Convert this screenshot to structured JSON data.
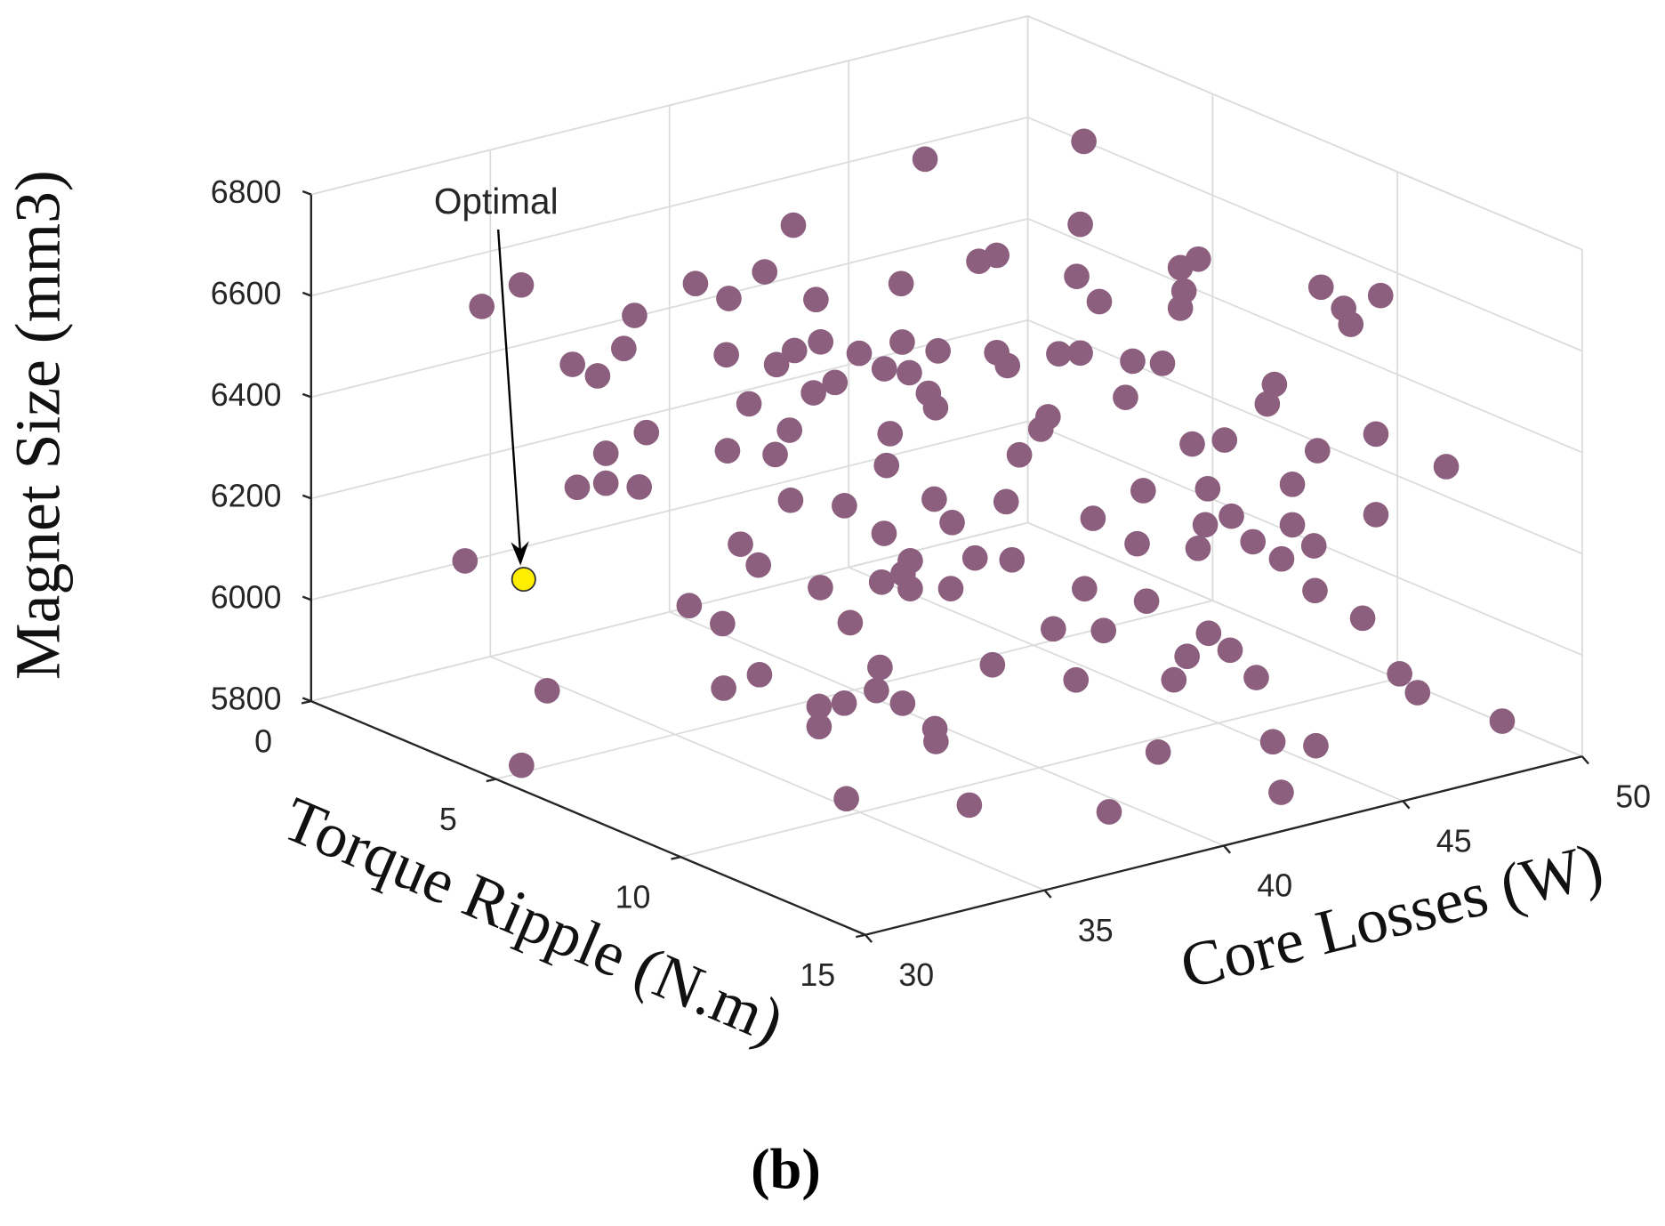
{
  "chart_data": {
    "type": "scatter3d",
    "x_label": "Torque Ripple (N.m)",
    "y_label": "Core Losses (W)",
    "z_label": "Magnet Size (mm3)",
    "caption": "(b)",
    "xlim": [
      0,
      15
    ],
    "xticks": [
      0,
      5,
      10,
      15
    ],
    "ylim": [
      30,
      50
    ],
    "yticks": [
      30,
      35,
      40,
      45,
      50
    ],
    "zlim": [
      5800,
      6800
    ],
    "zticks": [
      5800,
      6000,
      6200,
      6400,
      6600,
      6800
    ],
    "grid": true,
    "series": [
      {
        "color": "#8c5f7e",
        "x": [
          2,
          2,
          3,
          6,
          5.5,
          3,
          3,
          4,
          4,
          4,
          5,
          4,
          4,
          5,
          8,
          9,
          10,
          10,
          14,
          4,
          5,
          5,
          5,
          6,
          7,
          7,
          6,
          6,
          7,
          6,
          7,
          7,
          8,
          8,
          9,
          9,
          9,
          9,
          10,
          11,
          12,
          12,
          12,
          12,
          13,
          12,
          13,
          14,
          15,
          15,
          14,
          15,
          14,
          14,
          14,
          12,
          12,
          11,
          12,
          11,
          11,
          12,
          11,
          11,
          10,
          10,
          10,
          9,
          10,
          10,
          9,
          9,
          10,
          10,
          12,
          9,
          9,
          9,
          9,
          9,
          8,
          8,
          8,
          7,
          7,
          7,
          6,
          6,
          4,
          4,
          5,
          2,
          2,
          2,
          3,
          2,
          2,
          5,
          5,
          5,
          5,
          9,
          10,
          10,
          11,
          9,
          9,
          2,
          2,
          2,
          3,
          4,
          5,
          1,
          1,
          1,
          1,
          1,
          2,
          3,
          3,
          3,
          3,
          3,
          4,
          4,
          5,
          5,
          6,
          6,
          6,
          7,
          7,
          7,
          7,
          8
        ],
        "y": [
          32.7,
          33.8,
          31.2,
          30.4,
          30.2,
          34.2,
          34.9,
          34.6,
          34.9,
          34.1,
          34.2,
          33.3,
          34.1,
          34.0,
          32.3,
          32.2,
          31.2,
          32.2,
          30.5,
          36.6,
          36.5,
          37.5,
          38.3,
          35.4,
          35.0,
          34.4,
          36.8,
          37.3,
          37.0,
          37.9,
          36.8,
          37.4,
          35.1,
          34.7,
          34.1,
          35.6,
          32.7,
          33.2,
          33.9,
          33.7,
          31.8,
          31.8,
          32.5,
          33.4,
          33.1,
          33.5,
          34.0,
          33.0,
          32.9,
          36.8,
          39.2,
          41.6,
          42.4,
          43.6,
          48.8,
          48.5,
          48.0,
          48.0,
          44.0,
          44.3,
          43.7,
          41.7,
          43.1,
          40.0,
          38.7,
          40.4,
          41.8,
          42.3,
          43.0,
          47.7,
          47.8,
          48.7,
          49.4,
          49.4,
          49.3,
          48.8,
          48.1,
          48.1,
          47.0,
          46.4,
          46.7,
          46.5,
          44.8,
          44.6,
          46.0,
          47.8,
          48.4,
          49.3,
          48.6,
          48.8,
          48.6,
          48.8,
          49.4,
          49.3,
          48.9,
          49.4,
          49.5,
          49.1,
          49.6,
          49.2,
          49.1,
          48.9,
          48.5,
          48.7,
          48.5,
          47.6,
          47.4,
          48.5,
          48.3,
          47.7,
          46.3,
          44.4,
          44.4,
          48.1,
          48.4,
          47.6,
          48.1,
          46.1,
          44.4,
          43.4,
          44.4,
          42.2,
          42.9,
          43.6,
          43.1,
          43.3,
          41.0,
          40.9,
          41.2,
          41.7,
          39.8,
          39.5,
          39.3,
          38.7,
          39.5,
          39.6
        ],
        "z": [
          6593,
          6616,
          6148,
          5998,
          5839,
          6483,
          6448,
          6538,
          6598,
          6340,
          6410,
          6287,
          6281,
          6306,
          6194,
          6191,
          6112,
          6121,
          6029,
          6631,
          6634,
          6669,
          6747,
          6573,
          6514,
          6432,
          6529,
          6548,
          6601,
          6638,
          6504,
          6514,
          6491,
          6450,
          6401,
          6364,
          6339,
          6289,
          6263,
          6228,
          6127,
          6087,
          6121,
          6130,
          6141,
          6174,
          6075,
          6098,
          6005,
          5923,
          5968,
          5877,
          5932,
          5903,
          5860,
          5860,
          5906,
          5985,
          5969,
          5987,
          6031,
          6005,
          5996,
          6004,
          6026,
          6067,
          6039,
          6082,
          6076,
          6014,
          6044,
          6054,
          6134,
          6293,
          6292,
          6240,
          6186,
          6106,
          6092,
          6153,
          6100,
          6057,
          6096,
          6119,
          6149,
          6121,
          6168,
          6160,
          6195,
          6263,
          6293,
          6216,
          6207,
          6360,
          6348,
          6461,
          6623,
          6473,
          6481,
          6425,
          6393,
          6561,
          6557,
          6522,
          6613,
          6392,
          6357,
          6097,
          6076,
          6036,
          5999,
          5952,
          5979,
          6200,
          6169,
          6389,
          6392,
          6617,
          6432,
          6365,
          6330,
          6364,
          6321,
          6301,
          6300,
          6268,
          6288,
          6227,
          6186,
          6131,
          6143,
          6125,
          6103,
          6097,
          6070,
          6099
        ]
      }
    ],
    "annotation": {
      "text": "Optimal",
      "x": 1,
      "y": 34.9,
      "z": 5985,
      "color": "#ffee00"
    }
  }
}
